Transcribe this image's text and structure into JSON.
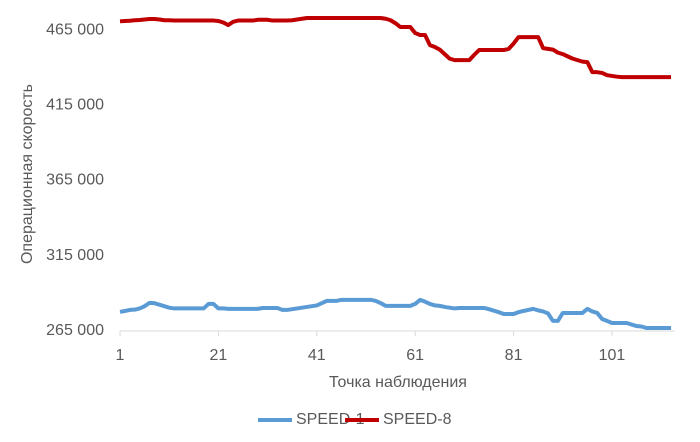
{
  "chart_data": {
    "type": "line",
    "x_label": "Точка наблюдения",
    "y_label": "Операционная скорость",
    "x": [
      1,
      2,
      3,
      4,
      5,
      6,
      7,
      8,
      9,
      10,
      11,
      12,
      13,
      14,
      15,
      16,
      17,
      18,
      19,
      20,
      21,
      22,
      23,
      24,
      25,
      26,
      27,
      28,
      29,
      30,
      31,
      32,
      33,
      34,
      35,
      36,
      37,
      38,
      39,
      40,
      41,
      42,
      43,
      44,
      45,
      46,
      47,
      48,
      49,
      50,
      51,
      52,
      53,
      54,
      55,
      56,
      57,
      58,
      59,
      60,
      61,
      62,
      63,
      64,
      65,
      66,
      67,
      68,
      69,
      70,
      71,
      72,
      73,
      74,
      75,
      76,
      77,
      78,
      79,
      80,
      81,
      82,
      83,
      84,
      85,
      86,
      87,
      88,
      89,
      90,
      91,
      92,
      93,
      94,
      95,
      96,
      97,
      98,
      99,
      100,
      101,
      102,
      103,
      104,
      105,
      106,
      107,
      108,
      109,
      110,
      111,
      112,
      113
    ],
    "series": [
      {
        "name": "SPEED-1",
        "color": "#5b9bd5",
        "values": [
          277700,
          278300,
          279000,
          279200,
          280000,
          281500,
          283700,
          283500,
          282500,
          281500,
          280500,
          280000,
          280000,
          280000,
          280000,
          280000,
          280000,
          280000,
          283000,
          283000,
          280000,
          280000,
          279700,
          279700,
          279700,
          279700,
          279700,
          279700,
          279700,
          280300,
          280300,
          280300,
          280300,
          279000,
          279000,
          279500,
          280000,
          280500,
          281000,
          281500,
          282000,
          283500,
          285000,
          285000,
          285000,
          285700,
          285700,
          285700,
          285700,
          285700,
          285700,
          285700,
          285000,
          283500,
          281700,
          281700,
          281700,
          281700,
          281700,
          281700,
          283000,
          285700,
          284500,
          283000,
          282000,
          281700,
          281000,
          280500,
          280000,
          280300,
          280300,
          280300,
          280300,
          280300,
          280300,
          279500,
          278500,
          277500,
          276300,
          276300,
          276300,
          277500,
          278300,
          279000,
          279700,
          278700,
          278000,
          276700,
          271700,
          271700,
          277000,
          277000,
          277000,
          277000,
          277000,
          279700,
          278000,
          277000,
          273000,
          271700,
          270300,
          270300,
          270300,
          270300,
          269300,
          268300,
          268000,
          267000,
          267000,
          267000,
          267000,
          267000,
          267000
        ]
      },
      {
        "name": "SPEED-8",
        "color": "#c00000",
        "values": [
          470800,
          471000,
          471200,
          471500,
          471700,
          472000,
          472300,
          472300,
          472000,
          471500,
          471500,
          471300,
          471300,
          471300,
          471300,
          471300,
          471300,
          471300,
          471300,
          471300,
          471000,
          470000,
          468300,
          470500,
          471300,
          471300,
          471300,
          471300,
          471800,
          471800,
          471800,
          471300,
          471300,
          471300,
          471300,
          471500,
          472000,
          472500,
          473000,
          473000,
          473000,
          473000,
          473000,
          473000,
          473000,
          473000,
          473000,
          473000,
          473000,
          473000,
          473000,
          473000,
          473000,
          473000,
          472500,
          471500,
          469500,
          467000,
          467000,
          467000,
          463000,
          461700,
          461700,
          455000,
          453700,
          452000,
          449000,
          446000,
          445000,
          445000,
          445000,
          445000,
          448500,
          451700,
          451700,
          451700,
          451700,
          451700,
          451700,
          452500,
          456000,
          460300,
          460300,
          460300,
          460300,
          460300,
          453000,
          452500,
          452000,
          450000,
          449000,
          447500,
          446000,
          445000,
          444000,
          443700,
          437000,
          437000,
          436500,
          435000,
          434500,
          434000,
          433700,
          433700,
          433700,
          433700,
          433700,
          433700,
          433700,
          433700,
          433700,
          433700,
          433700
        ]
      }
    ],
    "xlim": [
      1,
      113
    ],
    "xticks": [
      1,
      21,
      41,
      61,
      81,
      101
    ],
    "ylim": [
      265000,
      473000
    ],
    "yticks": [
      {
        "value": 265000,
        "label": "265 000"
      },
      {
        "value": 315000,
        "label": "315 000"
      },
      {
        "value": 365000,
        "label": "365 000"
      },
      {
        "value": 415000,
        "label": "415 000"
      },
      {
        "value": 465000,
        "label": "465 000"
      }
    ],
    "grid": false,
    "legend": "bottom"
  }
}
